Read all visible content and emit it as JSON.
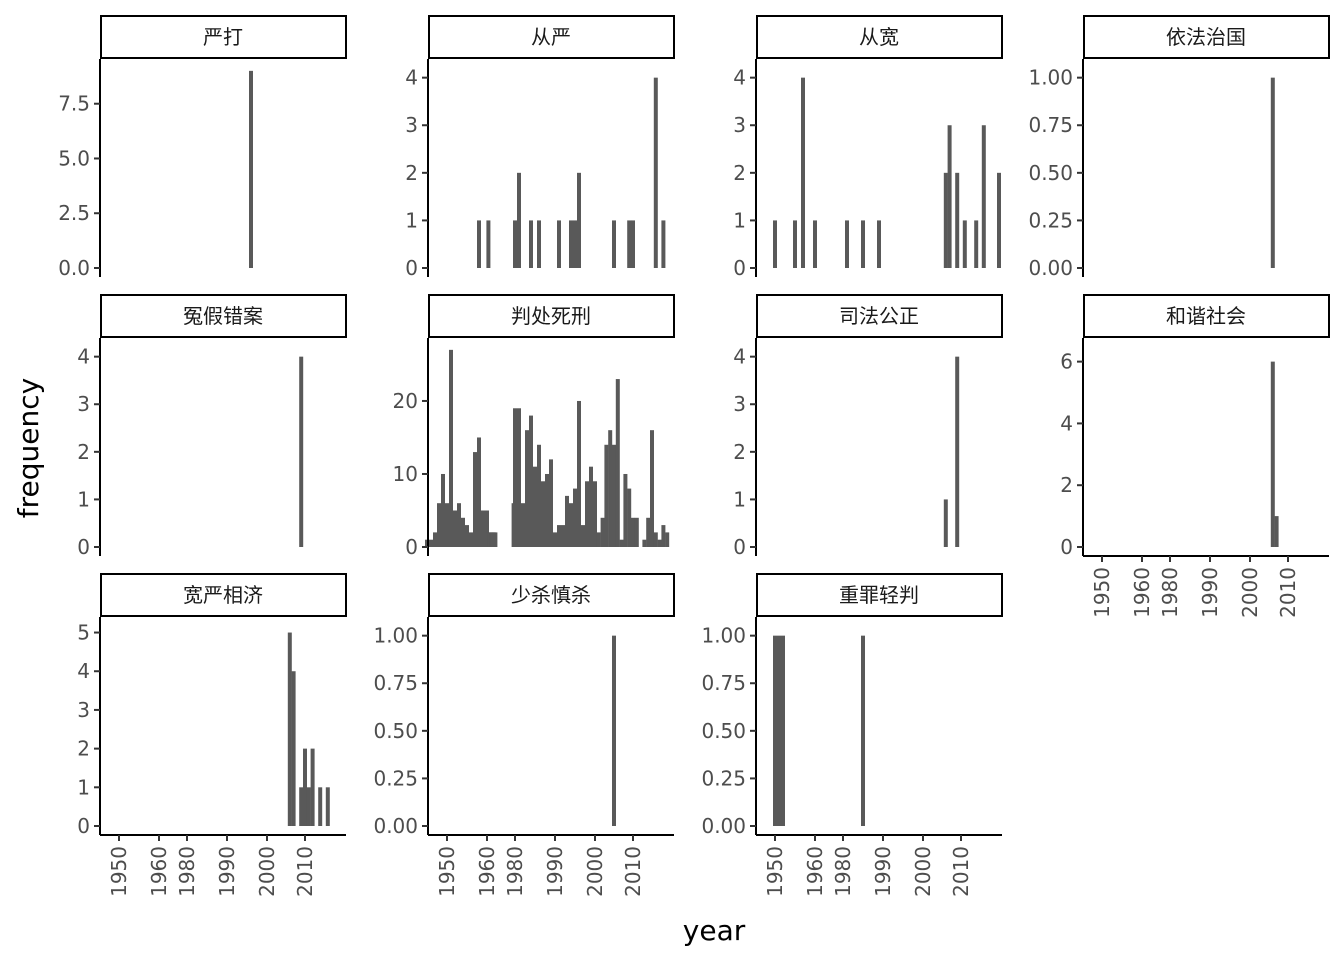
{
  "x_title": "year",
  "y_title": "frequency",
  "chart_data": {
    "type": "bar",
    "layout": "facet_wrap 3 rows x 4 columns, free y scales, shared x scale",
    "xlabel": "year",
    "ylabel": "frequency",
    "x_tick_labels": [
      "1950",
      "1960",
      "1980",
      "1990",
      "2000",
      "2010"
    ],
    "bar_color": "#595959",
    "facets": [
      {
        "title": "严打",
        "y_ticks": [
          "0.0",
          "2.5",
          "5.0",
          "7.5"
        ],
        "x_ticks_shown": false,
        "bars": [
          {
            "year": 1996,
            "value": 9
          }
        ]
      },
      {
        "title": "从严",
        "y_ticks": [
          "0",
          "1",
          "2",
          "3",
          "4"
        ],
        "x_ticks_shown": false,
        "bars": [
          {
            "year": 1958,
            "value": 1
          },
          {
            "year": 1961,
            "value": 1
          },
          {
            "year": 1980,
            "value": 1
          },
          {
            "year": 1981,
            "value": 2
          },
          {
            "year": 1984,
            "value": 1
          },
          {
            "year": 1986,
            "value": 1
          },
          {
            "year": 1991,
            "value": 1
          },
          {
            "year": 1994,
            "value": 1
          },
          {
            "year": 1995,
            "value": 1
          },
          {
            "year": 1996,
            "value": 2
          },
          {
            "year": 2005,
            "value": 1
          },
          {
            "year": 2009,
            "value": 1
          },
          {
            "year": 2010,
            "value": 1
          },
          {
            "year": 2016,
            "value": 4
          },
          {
            "year": 2018,
            "value": 1
          }
        ]
      },
      {
        "title": "从宽",
        "y_ticks": [
          "0",
          "1",
          "2",
          "3",
          "4"
        ],
        "x_ticks_shown": false,
        "bars": [
          {
            "year": 1950,
            "value": 1
          },
          {
            "year": 1955,
            "value": 1
          },
          {
            "year": 1957,
            "value": 4
          },
          {
            "year": 1960,
            "value": 1
          },
          {
            "year": 1981,
            "value": 1
          },
          {
            "year": 1985,
            "value": 1
          },
          {
            "year": 1989,
            "value": 1
          },
          {
            "year": 2006,
            "value": 2
          },
          {
            "year": 2007,
            "value": 3
          },
          {
            "year": 2009,
            "value": 2
          },
          {
            "year": 2011,
            "value": 1
          },
          {
            "year": 2014,
            "value": 1
          },
          {
            "year": 2016,
            "value": 3
          },
          {
            "year": 2020,
            "value": 2
          }
        ]
      },
      {
        "title": "依法治国",
        "y_ticks": [
          "0.00",
          "0.25",
          "0.50",
          "0.75",
          "1.00"
        ],
        "x_ticks_shown": false,
        "bars": [
          {
            "year": 2006,
            "value": 1
          }
        ]
      },
      {
        "title": "冤假错案",
        "y_ticks": [
          "0",
          "1",
          "2",
          "3",
          "4"
        ],
        "x_ticks_shown": false,
        "bars": [
          {
            "year": 2009,
            "value": 4
          }
        ]
      },
      {
        "title": "判处死刑",
        "y_ticks": [
          "0",
          "10",
          "20"
        ],
        "x_ticks_shown": false,
        "bars": [
          {
            "year": 1945,
            "value": 1
          },
          {
            "year": 1946,
            "value": 1
          },
          {
            "year": 1947,
            "value": 2
          },
          {
            "year": 1948,
            "value": 6
          },
          {
            "year": 1949,
            "value": 10
          },
          {
            "year": 1950,
            "value": 6
          },
          {
            "year": 1951,
            "value": 27
          },
          {
            "year": 1952,
            "value": 5
          },
          {
            "year": 1953,
            "value": 6
          },
          {
            "year": 1954,
            "value": 4
          },
          {
            "year": 1955,
            "value": 3
          },
          {
            "year": 1956,
            "value": 2
          },
          {
            "year": 1957,
            "value": 13
          },
          {
            "year": 1958,
            "value": 15
          },
          {
            "year": 1959,
            "value": 5
          },
          {
            "year": 1960,
            "value": 5
          },
          {
            "year": 1961,
            "value": 2
          },
          {
            "year": 1962,
            "value": 2
          },
          {
            "year": 1963,
            "value": 2
          },
          {
            "year": 1964,
            "value": 2
          },
          {
            "year": 1965,
            "value": 2
          },
          {
            "year": 1966,
            "value": 2
          },
          {
            "year": 1979,
            "value": 6
          },
          {
            "year": 1980,
            "value": 19
          },
          {
            "year": 1981,
            "value": 19
          },
          {
            "year": 1982,
            "value": 6
          },
          {
            "year": 1983,
            "value": 16
          },
          {
            "year": 1984,
            "value": 18
          },
          {
            "year": 1985,
            "value": 11
          },
          {
            "year": 1986,
            "value": 14
          },
          {
            "year": 1987,
            "value": 9
          },
          {
            "year": 1988,
            "value": 10
          },
          {
            "year": 1989,
            "value": 12
          },
          {
            "year": 1990,
            "value": 2
          },
          {
            "year": 1991,
            "value": 3
          },
          {
            "year": 1992,
            "value": 3
          },
          {
            "year": 1993,
            "value": 7
          },
          {
            "year": 1994,
            "value": 6
          },
          {
            "year": 1995,
            "value": 8
          },
          {
            "year": 1996,
            "value": 20
          },
          {
            "year": 1997,
            "value": 3
          },
          {
            "year": 1998,
            "value": 9
          },
          {
            "year": 1999,
            "value": 11
          },
          {
            "year": 2000,
            "value": 9
          },
          {
            "year": 2001,
            "value": 2
          },
          {
            "year": 2002,
            "value": 4
          },
          {
            "year": 2003,
            "value": 14
          },
          {
            "year": 2004,
            "value": 16
          },
          {
            "year": 2005,
            "value": 14
          },
          {
            "year": 2006,
            "value": 23
          },
          {
            "year": 2007,
            "value": 1
          },
          {
            "year": 2008,
            "value": 10
          },
          {
            "year": 2009,
            "value": 8
          },
          {
            "year": 2010,
            "value": 4
          },
          {
            "year": 2011,
            "value": 4
          },
          {
            "year": 2013,
            "value": 1
          },
          {
            "year": 2014,
            "value": 4
          },
          {
            "year": 2015,
            "value": 16
          },
          {
            "year": 2016,
            "value": 2
          },
          {
            "year": 2017,
            "value": 1
          },
          {
            "year": 2018,
            "value": 3
          },
          {
            "year": 2019,
            "value": 2
          }
        ]
      },
      {
        "title": "司法公正",
        "y_ticks": [
          "0",
          "1",
          "2",
          "3",
          "4"
        ],
        "x_ticks_shown": false,
        "bars": [
          {
            "year": 2006,
            "value": 1
          },
          {
            "year": 2009,
            "value": 4
          }
        ]
      },
      {
        "title": "和谐社会",
        "y_ticks": [
          "0",
          "2",
          "4",
          "6"
        ],
        "x_ticks_shown": true,
        "bars": [
          {
            "year": 2006,
            "value": 6
          },
          {
            "year": 2007,
            "value": 1
          }
        ]
      },
      {
        "title": "宽严相济",
        "y_ticks": [
          "0",
          "1",
          "2",
          "3",
          "4",
          "5"
        ],
        "x_ticks_shown": true,
        "bars": [
          {
            "year": 2006,
            "value": 5
          },
          {
            "year": 2007,
            "value": 4
          },
          {
            "year": 2009,
            "value": 1
          },
          {
            "year": 2010,
            "value": 2
          },
          {
            "year": 2011,
            "value": 1
          },
          {
            "year": 2012,
            "value": 2
          },
          {
            "year": 2014,
            "value": 1
          },
          {
            "year": 2016,
            "value": 1
          }
        ]
      },
      {
        "title": "少杀慎杀",
        "y_ticks": [
          "0.00",
          "0.25",
          "0.50",
          "0.75",
          "1.00"
        ],
        "x_ticks_shown": true,
        "bars": [
          {
            "year": 2005,
            "value": 1
          }
        ]
      },
      {
        "title": "重罪轻判",
        "y_ticks": [
          "0.00",
          "0.25",
          "0.50",
          "0.75",
          "1.00"
        ],
        "x_ticks_shown": true,
        "bars": [
          {
            "year": 1950,
            "value": 1
          },
          {
            "year": 1951,
            "value": 1
          },
          {
            "year": 1952,
            "value": 1
          },
          {
            "year": 1985,
            "value": 1
          }
        ]
      }
    ]
  }
}
